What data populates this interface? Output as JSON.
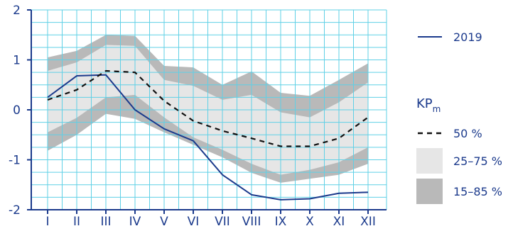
{
  "chart_data": {
    "type": "area",
    "categories": [
      "I",
      "II",
      "III",
      "IV",
      "V",
      "VI",
      "VII",
      "VIII",
      "IX",
      "X",
      "XI",
      "XII"
    ],
    "ylim": [
      -2,
      2
    ],
    "yticks": [
      "-2",
      "-1",
      "0",
      "1",
      "2"
    ],
    "grid": true,
    "legend_position": "right",
    "legend_title": {
      "main": "KP",
      "subscript": "m"
    },
    "series": [
      {
        "name": "2019",
        "style": "solid",
        "values": [
          0.25,
          0.68,
          0.7,
          0.0,
          -0.38,
          -0.62,
          -1.3,
          -1.7,
          -1.8,
          -1.78,
          -1.67,
          -1.65
        ]
      },
      {
        "name": "50 %",
        "style": "dashed",
        "values": [
          0.2,
          0.4,
          0.78,
          0.75,
          0.18,
          -0.22,
          -0.42,
          -0.57,
          -0.73,
          -0.73,
          -0.57,
          -0.15
        ]
      }
    ],
    "bands": [
      {
        "name": "15–85 %",
        "lower": [
          -0.82,
          -0.5,
          -0.08,
          -0.18,
          -0.45,
          -0.7,
          -0.95,
          -1.26,
          -1.46,
          -1.38,
          -1.3,
          -1.08
        ],
        "upper": [
          1.05,
          1.18,
          1.5,
          1.48,
          0.88,
          0.85,
          0.5,
          0.77,
          0.34,
          0.28,
          0.6,
          0.93
        ]
      },
      {
        "name": "25–75 %",
        "lower": [
          -0.45,
          -0.16,
          0.25,
          0.3,
          -0.15,
          -0.55,
          -0.8,
          -1.08,
          -1.3,
          -1.2,
          -1.05,
          -0.75
        ],
        "upper": [
          0.78,
          0.95,
          1.3,
          1.28,
          0.6,
          0.48,
          0.2,
          0.3,
          -0.05,
          -0.15,
          0.15,
          0.55
        ]
      }
    ],
    "colors": {
      "line": "#1b3a8c",
      "dashed": "#111111",
      "band_outer": "#b9b9b9",
      "band_inner": "#e6e6e6",
      "grid": "#5fd0e6",
      "axis": "#1b3a8c"
    }
  }
}
